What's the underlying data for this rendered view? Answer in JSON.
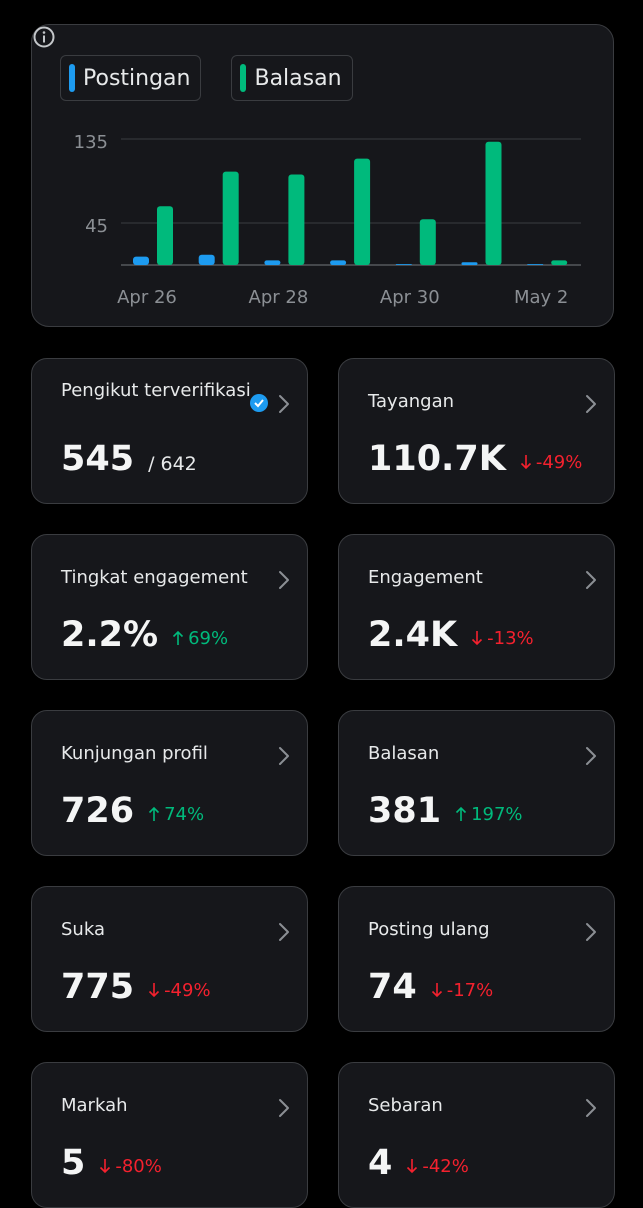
{
  "chart_data": {
    "type": "bar",
    "categories": [
      "Apr 26",
      null,
      "Apr 28",
      null,
      "Apr 30",
      null,
      "May 2"
    ],
    "series": [
      {
        "name": "Postingan",
        "color": "#1d9bf0",
        "values": [
          9,
          11,
          5,
          5,
          1,
          3,
          1
        ]
      },
      {
        "name": "Balasan",
        "color": "#00ba7c",
        "values": [
          63,
          100,
          97,
          114,
          49,
          132,
          5
        ]
      }
    ],
    "ylim": [
      0,
      135
    ],
    "yticks": [
      45,
      135
    ],
    "grid": true
  },
  "cards": [
    {
      "label": "Pengikut terverifikasi",
      "value": "545",
      "total": "/ 642"
    },
    {
      "label": "Tayangan",
      "value": "110.7K",
      "change": "-49%",
      "trend": "down"
    },
    {
      "label": "Tingkat engagement",
      "value": "2.2%",
      "change": "69%",
      "trend": "up"
    },
    {
      "label": "Engagement",
      "value": "2.4K",
      "change": "-13%",
      "trend": "down"
    },
    {
      "label": "Kunjungan profil",
      "value": "726",
      "change": "74%",
      "trend": "up"
    },
    {
      "label": "Balasan",
      "value": "381",
      "change": "197%",
      "trend": "up"
    },
    {
      "label": "Suka",
      "value": "775",
      "change": "-49%",
      "trend": "down"
    },
    {
      "label": "Posting ulang",
      "value": "74",
      "change": "-17%",
      "trend": "down"
    },
    {
      "label": "Markah",
      "value": "5",
      "change": "-80%",
      "trend": "down"
    },
    {
      "label": "Sebaran",
      "value": "4",
      "change": "-42%",
      "trend": "down"
    }
  ]
}
